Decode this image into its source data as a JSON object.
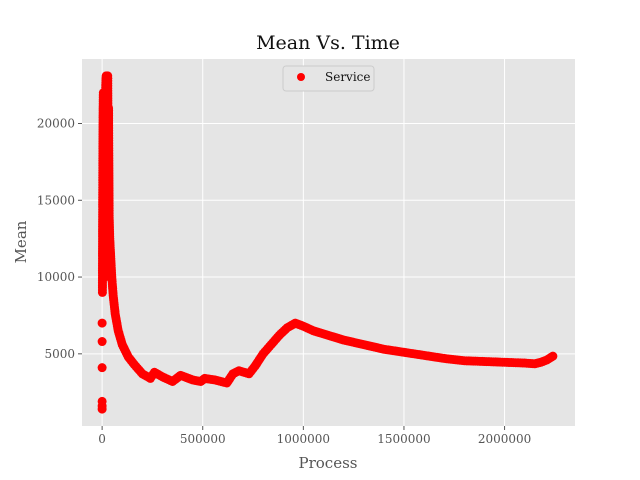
{
  "chart_data": {
    "type": "scatter",
    "title": "Mean Vs. Time",
    "xlabel": "Process",
    "ylabel": "Mean",
    "xlim": [
      -100000,
      2350000
    ],
    "ylim": [
      300,
      24200
    ],
    "xticks": [
      0,
      500000,
      1000000,
      1500000,
      2000000
    ],
    "xtick_labels": [
      "0",
      "500000",
      "1000000",
      "1500000",
      "2000000"
    ],
    "yticks": [
      5000,
      10000,
      15000,
      20000
    ],
    "ytick_labels": [
      "5000",
      "10000",
      "15000",
      "20000"
    ],
    "grid": true,
    "legend_position": "top-center",
    "colors": {
      "series": "#ff0000",
      "background": "#e5e5e5",
      "grid": "#ffffff"
    },
    "series": [
      {
        "name": "Service",
        "marker": "circle",
        "points": [
          [
            0,
            1400
          ],
          [
            0,
            1600
          ],
          [
            0,
            1900
          ],
          [
            0,
            4100
          ],
          [
            0,
            5800
          ],
          [
            0,
            7000
          ],
          [
            1500,
            9000
          ],
          [
            2000,
            12000
          ],
          [
            3000,
            16000
          ],
          [
            4000,
            19000
          ],
          [
            5000,
            21000
          ],
          [
            6000,
            22000
          ],
          [
            8000,
            20500
          ],
          [
            10000,
            17000
          ],
          [
            12000,
            12000
          ],
          [
            14000,
            10000
          ],
          [
            16000,
            14000
          ],
          [
            18000,
            22500
          ],
          [
            20000,
            23100
          ],
          [
            22000,
            20000
          ],
          [
            24000,
            18000
          ],
          [
            26000,
            22000
          ],
          [
            28000,
            23100
          ],
          [
            30000,
            16000
          ],
          [
            32000,
            21000
          ],
          [
            35000,
            14000
          ],
          [
            38000,
            12500
          ],
          [
            42000,
            11500
          ],
          [
            48000,
            10000
          ],
          [
            55000,
            8800
          ],
          [
            65000,
            7600
          ],
          [
            80000,
            6500
          ],
          [
            100000,
            5600
          ],
          [
            130000,
            4800
          ],
          [
            160000,
            4300
          ],
          [
            200000,
            3700
          ],
          [
            240000,
            3400
          ],
          [
            260000,
            3800
          ],
          [
            300000,
            3500
          ],
          [
            350000,
            3200
          ],
          [
            390000,
            3600
          ],
          [
            450000,
            3300
          ],
          [
            490000,
            3200
          ],
          [
            510000,
            3400
          ],
          [
            560000,
            3300
          ],
          [
            620000,
            3100
          ],
          [
            650000,
            3700
          ],
          [
            680000,
            3900
          ],
          [
            730000,
            3700
          ],
          [
            760000,
            4200
          ],
          [
            800000,
            5000
          ],
          [
            840000,
            5600
          ],
          [
            880000,
            6200
          ],
          [
            920000,
            6700
          ],
          [
            960000,
            7000
          ],
          [
            1000000,
            6800
          ],
          [
            1050000,
            6500
          ],
          [
            1100000,
            6300
          ],
          [
            1150000,
            6100
          ],
          [
            1200000,
            5900
          ],
          [
            1300000,
            5600
          ],
          [
            1400000,
            5300
          ],
          [
            1500000,
            5100
          ],
          [
            1600000,
            4900
          ],
          [
            1700000,
            4700
          ],
          [
            1800000,
            4550
          ],
          [
            1900000,
            4500
          ],
          [
            2000000,
            4450
          ],
          [
            2100000,
            4400
          ],
          [
            2150000,
            4350
          ],
          [
            2180000,
            4450
          ],
          [
            2210000,
            4600
          ],
          [
            2240000,
            4850
          ]
        ]
      }
    ]
  }
}
